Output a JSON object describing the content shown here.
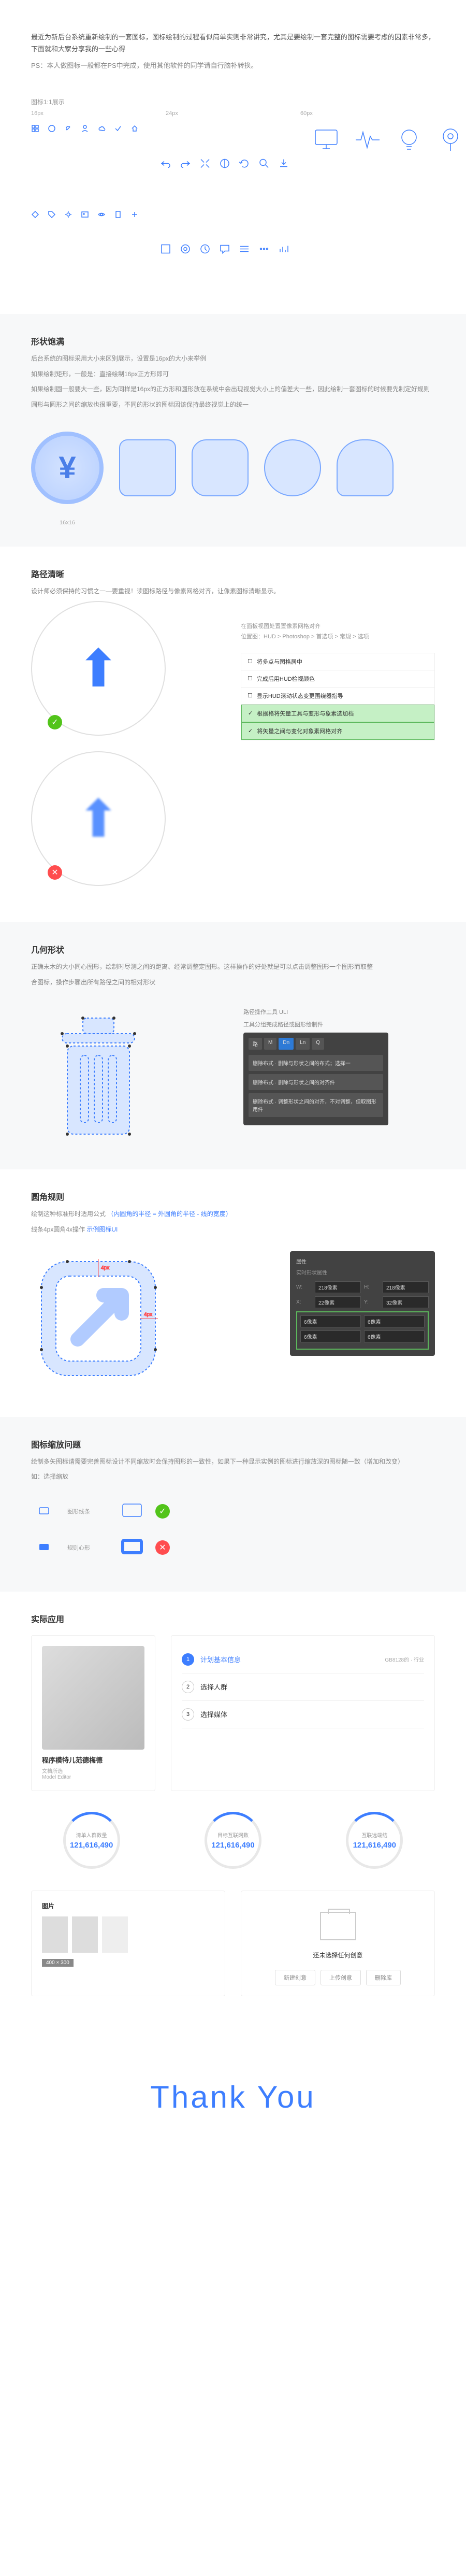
{
  "intro": {
    "line1": "最近为新后台系统重新绘制的一套图标，图标绘制的过程看似简单实则非常讲究，尤其是要绘制一套完整的图标需要考虑的因素非常多，下面就和大家分享我的一些心得",
    "ps": "PS：本人做图标一般都在PS中完成，使用其他软件的同学请自行脑补转换。"
  },
  "iconDisplay": {
    "title": "图标1:1展示",
    "sizes": [
      "16px",
      "24px",
      "60px"
    ]
  },
  "fullness": {
    "title": "形状饱满",
    "line1": "后台系统的图标采用大小来区别展示，设置是16px的大小来举例",
    "line2": "如果绘制矩形，一般是：直接绘制16px正方形即可",
    "line3": "如果绘制圆一般要大一些，因为同样是16px的正方形和圆形放在系统中会出现视觉大小上的偏差大一些，因此绘制一套图标的时候要先制定好规则",
    "line4": "圆形与圆形之间的缩放也很重要，不同的形状的图标因该保持最终视觉上的统一",
    "label": "16x16"
  },
  "clarity": {
    "title": "路径清晰",
    "desc": "设计师必须保持的习惯之一—要重视！读图标路径与像素网格对齐，让像素图标清晰显示。",
    "info1": "在面板视图处置置像素网格对齐",
    "info2": "位置图：HUD > Photoshop > 首选项 > 常规 > 选项",
    "checklist": [
      {
        "text": "将多点与图格居中",
        "hl": false
      },
      {
        "text": "完成后用HUD检视颜色",
        "hl": false
      },
      {
        "text": "显示HUD滚动状态变更围绕器指导",
        "hl": false
      },
      {
        "text": "根据格将矢量工具与变形与象素选加档",
        "hl": true
      },
      {
        "text": "将矢量之间与变化对象素网格对齐",
        "hl": true
      }
    ]
  },
  "geometry": {
    "title": "几何形状",
    "desc1": "正确末木的大小同心图形，绘制时尽测之间的距离、经常调整定图形。这样操作的好处就是可以点击调整图形一个图形而取整",
    "desc2": "合图标，操作步骤出所有路径之间的相对形状",
    "toolTitle": "路径操作工具 ULI",
    "toolSub": "工具分组完成路径或图形绘制件",
    "tabs": [
      "路",
      "M",
      "Dn",
      "Ln",
      "Q"
    ],
    "rows": [
      "删除布式 · 删除与形状之间的布式；选择一",
      "删除布式 · 删除与形状之间的对齐件",
      "删除布式 · 调整形状之间的对齐，不对调整，但取图形用件"
    ]
  },
  "corner": {
    "title": "圆角规则",
    "desc": "绘制这种标准形时适用公式",
    "formula": "（内圆角的半径 = 外圆角的半径 - 线的宽度）",
    "desc2": "线条4px圆角4x操作 ",
    "exampleLink": "示例图标UI",
    "propTitle": "属性",
    "propSub": "实时形状属性",
    "props": {
      "w": "218像素",
      "h": "218像素",
      "x": "22像素",
      "y": "32像素"
    },
    "corners": [
      "6像素",
      "6像素",
      "6像素",
      "6像素"
    ]
  },
  "scaling": {
    "title": "图标缩放问题",
    "desc": "绘制多矢图标请需要完善图标设计不同缩放时会保持图形的一致性，如果下一种显示实例的图标进行缩放深的图标随一致（增加和改变）",
    "ps": "如：选择缩放",
    "label1": "图形线条",
    "label2": "规则心形"
  },
  "application": {
    "title": "实际应用",
    "personName": "程序模特儿范德梅德",
    "personSub": "文档所选",
    "personMeta": "Model Editor",
    "plan": {
      "title": "计划基本信息",
      "subtitle": "GB8128的 · 行业",
      "steps": [
        "计划基本信息",
        "选择人群",
        "选择媒体"
      ]
    },
    "metrics": [
      {
        "label": "清单人群数量",
        "value": "121,616,490"
      },
      {
        "label": "目标互联网数",
        "value": "121,616,490"
      },
      {
        "label": "互联远端结",
        "value": "121,616,490"
      }
    ],
    "imgCard": {
      "title": "图片",
      "size": "400 × 300"
    },
    "emptyCard": {
      "title": "还未选择任何创意",
      "btns": [
        "新建创意",
        "上传创意",
        "删除库"
      ]
    }
  },
  "thank": "Thank You",
  "colors": {
    "primary": "#3d7eff",
    "ok": "#52c41a",
    "err": "#ff4d4f"
  }
}
